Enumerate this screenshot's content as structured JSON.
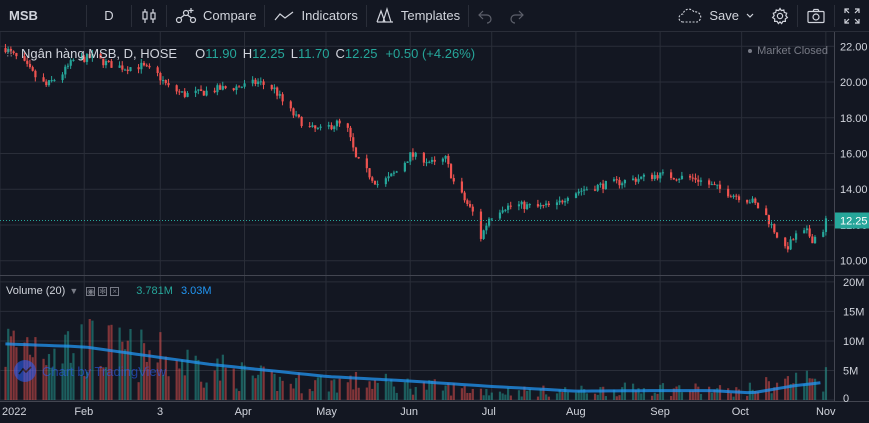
{
  "toolbar": {
    "symbol": "MSB",
    "interval": "D",
    "compare_label": "Compare",
    "indicators_label": "Indicators",
    "templates_label": "Templates",
    "save_label": "Save"
  },
  "legend": {
    "title": "Ngân hàng MSB, D, HOSE",
    "open_label": "O",
    "open": "11.90",
    "high_label": "H",
    "high": "12.25",
    "low_label": "L",
    "low": "11.70",
    "close_label": "C",
    "close": "12.25",
    "change": "+0.50 (+4.26%)"
  },
  "market_status": "Market Closed",
  "volume_legend": {
    "title": "Volume (20)",
    "volume": "3.781M",
    "volume_ma": "3.03M"
  },
  "watermark": "Chart by TradingView",
  "colors": {
    "background": "#131722",
    "up": "#26a69a",
    "down": "#ef5350",
    "ma": "#2196f3",
    "grid": "#2a2e39",
    "text": "#d1d4dc",
    "muted": "#787b86"
  },
  "chart_data": {
    "type": "candlestick",
    "x_range": [
      "2022-01-01",
      "2022-11-04"
    ],
    "price_axis": {
      "ticks": [
        10,
        12,
        14,
        16,
        18,
        20,
        22
      ],
      "tick_labels": [
        "10.00",
        "12.00",
        "14.00",
        "16.00",
        "18.00",
        "20.00",
        "22.00"
      ],
      "range": [
        9.2,
        22.8
      ],
      "last_price": 12.25,
      "last_price_label": "12.25"
    },
    "volume_axis": {
      "ticks": [
        0,
        5,
        10,
        15,
        20
      ],
      "tick_labels": [
        "0",
        "5M",
        "10M",
        "15M",
        "20M"
      ],
      "range": [
        0,
        21
      ],
      "unit": "M"
    },
    "x_ticks": [
      {
        "date": "2022-01-01",
        "label": "2022"
      },
      {
        "date": "2022-02-01",
        "label": "Feb"
      },
      {
        "date": "2022-03-01",
        "label": "3"
      },
      {
        "date": "2022-04-01",
        "label": "Apr"
      },
      {
        "date": "2022-05-01",
        "label": "May"
      },
      {
        "date": "2022-06-01",
        "label": "Jun"
      },
      {
        "date": "2022-07-01",
        "label": "Jul"
      },
      {
        "date": "2022-08-01",
        "label": "Aug"
      },
      {
        "date": "2022-09-01",
        "label": "Sep"
      },
      {
        "date": "2022-10-01",
        "label": "Oct"
      },
      {
        "date": "2022-11-01",
        "label": "Nov"
      }
    ],
    "close_trend": [
      [
        "2022-01-03",
        21.9
      ],
      [
        "2022-01-05",
        21.6
      ],
      [
        "2022-01-10",
        21.0
      ],
      [
        "2022-01-14",
        20.3
      ],
      [
        "2022-01-18",
        19.8
      ],
      [
        "2022-01-24",
        20.5
      ],
      [
        "2022-01-28",
        21.2
      ],
      [
        "2022-02-04",
        21.4
      ],
      [
        "2022-02-10",
        21.0
      ],
      [
        "2022-02-16",
        20.8
      ],
      [
        "2022-02-22",
        20.9
      ],
      [
        "2022-02-28",
        20.4
      ],
      [
        "2022-03-04",
        19.7
      ],
      [
        "2022-03-10",
        19.3
      ],
      [
        "2022-03-16",
        19.4
      ],
      [
        "2022-03-22",
        19.6
      ],
      [
        "2022-03-28",
        19.7
      ],
      [
        "2022-04-01",
        19.8
      ],
      [
        "2022-04-06",
        20.0
      ],
      [
        "2022-04-12",
        19.6
      ],
      [
        "2022-04-15",
        18.9
      ],
      [
        "2022-04-20",
        18.0
      ],
      [
        "2022-04-25",
        17.4
      ],
      [
        "2022-04-29",
        17.3
      ],
      [
        "2022-05-05",
        17.7
      ],
      [
        "2022-05-09",
        17.3
      ],
      [
        "2022-05-12",
        15.7
      ],
      [
        "2022-05-17",
        14.8
      ],
      [
        "2022-05-20",
        14.3
      ],
      [
        "2022-05-24",
        14.6
      ],
      [
        "2022-05-27",
        15.0
      ],
      [
        "2022-06-01",
        15.9
      ],
      [
        "2022-06-06",
        15.7
      ],
      [
        "2022-06-10",
        15.4
      ],
      [
        "2022-06-14",
        15.7
      ],
      [
        "2022-06-17",
        14.4
      ],
      [
        "2022-06-21",
        13.4
      ],
      [
        "2022-06-24",
        12.7
      ],
      [
        "2022-06-27",
        11.3
      ],
      [
        "2022-06-30",
        12.4
      ],
      [
        "2022-07-05",
        13.0
      ],
      [
        "2022-07-11",
        13.1
      ],
      [
        "2022-07-18",
        13.0
      ],
      [
        "2022-07-25",
        13.1
      ],
      [
        "2022-07-29",
        13.7
      ],
      [
        "2022-08-04",
        14.0
      ],
      [
        "2022-08-10",
        14.2
      ],
      [
        "2022-08-17",
        14.4
      ],
      [
        "2022-08-24",
        14.6
      ],
      [
        "2022-08-31",
        14.8
      ],
      [
        "2022-09-07",
        14.7
      ],
      [
        "2022-09-14",
        14.6
      ],
      [
        "2022-09-20",
        14.2
      ],
      [
        "2022-09-26",
        13.8
      ],
      [
        "2022-09-30",
        13.6
      ],
      [
        "2022-10-05",
        13.3
      ],
      [
        "2022-10-10",
        12.5
      ],
      [
        "2022-10-13",
        11.7
      ],
      [
        "2022-10-17",
        10.6
      ],
      [
        "2022-10-19",
        11.0
      ],
      [
        "2022-10-21",
        11.4
      ],
      [
        "2022-10-25",
        11.6
      ],
      [
        "2022-10-27",
        11.2
      ],
      [
        "2022-10-31",
        11.75
      ],
      [
        "2022-11-01",
        12.25
      ]
    ],
    "volume_trend_m": [
      [
        "2022-01-03",
        9
      ],
      [
        "2022-01-15",
        10
      ],
      [
        "2022-02-01",
        9
      ],
      [
        "2022-02-15",
        8
      ],
      [
        "2022-03-01",
        7
      ],
      [
        "2022-03-15",
        6
      ],
      [
        "2022-04-01",
        4
      ],
      [
        "2022-04-15",
        3
      ],
      [
        "2022-05-01",
        3
      ],
      [
        "2022-05-15",
        3
      ],
      [
        "2022-06-01",
        2.5
      ],
      [
        "2022-06-15",
        2
      ],
      [
        "2022-07-01",
        1.5
      ],
      [
        "2022-08-01",
        1.5
      ],
      [
        "2022-09-01",
        2
      ],
      [
        "2022-10-01",
        1.5
      ],
      [
        "2022-10-15",
        3
      ],
      [
        "2022-11-01",
        3.8
      ]
    ],
    "volume_ma_trend_m": [
      [
        "2022-01-03",
        9.5
      ],
      [
        "2022-02-01",
        9.0
      ],
      [
        "2022-03-01",
        7.2
      ],
      [
        "2022-03-20",
        6.0
      ],
      [
        "2022-04-10",
        5.0
      ],
      [
        "2022-05-01",
        4.0
      ],
      [
        "2022-06-01",
        3.2
      ],
      [
        "2022-07-01",
        2.3
      ],
      [
        "2022-08-01",
        1.5
      ],
      [
        "2022-09-01",
        1.6
      ],
      [
        "2022-09-20",
        1.6
      ],
      [
        "2022-10-05",
        1.2
      ],
      [
        "2022-10-20",
        2.4
      ],
      [
        "2022-11-01",
        3.03
      ]
    ]
  }
}
